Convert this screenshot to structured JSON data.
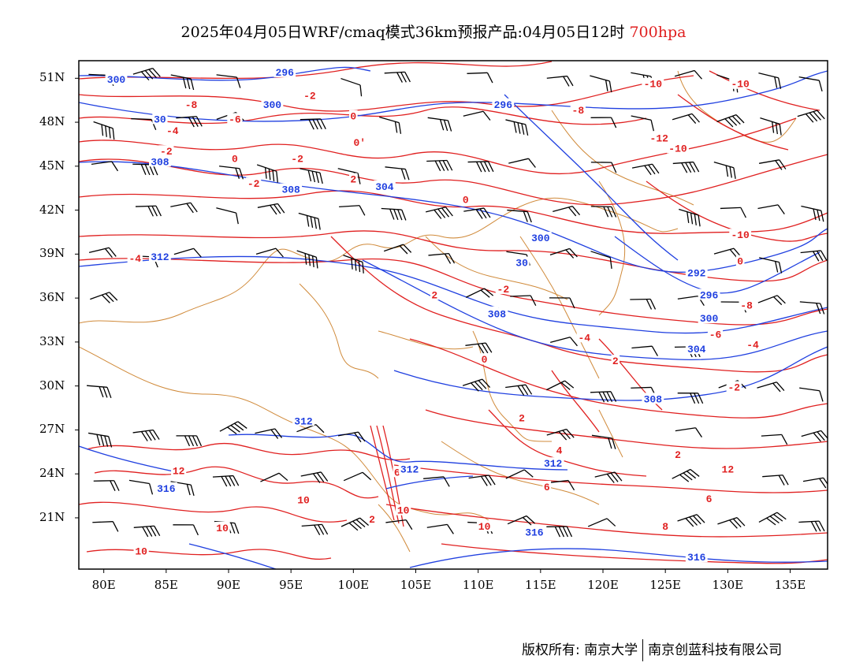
{
  "title": {
    "text": "2025年04月05日WRF/cmaq模式36km预报产品:04月05日12时",
    "level": "700hpa"
  },
  "axes": {
    "lat_labels": [
      "51N",
      "48N",
      "45N",
      "42N",
      "39N",
      "36N",
      "33N",
      "30N",
      "27N",
      "24N",
      "21N"
    ],
    "lon_labels": [
      "80E",
      "85E",
      "90E",
      "95E",
      "100E",
      "105E",
      "110E",
      "115E",
      "120E",
      "125E",
      "130E",
      "135E"
    ]
  },
  "contours": {
    "temperature_color": "#e02020",
    "height_color": "#2040e0",
    "border_color": "#d08a3a",
    "temperature_labels": [
      {
        "text": "-8",
        "lon": 87,
        "lat": 49.2
      },
      {
        "text": "-6",
        "lon": 90.5,
        "lat": 48.2
      },
      {
        "text": "-2",
        "lon": 96.5,
        "lat": 49.8
      },
      {
        "text": "0",
        "lon": 100,
        "lat": 48.4
      },
      {
        "text": "-4",
        "lon": 85.5,
        "lat": 47.4
      },
      {
        "text": "-2",
        "lon": 85,
        "lat": 46
      },
      {
        "text": "0",
        "lon": 90.5,
        "lat": 45.5
      },
      {
        "text": "-2",
        "lon": 95.5,
        "lat": 45.5
      },
      {
        "text": "-2",
        "lon": 92,
        "lat": 43.8
      },
      {
        "text": "0'",
        "lon": 100.5,
        "lat": 46.6
      },
      {
        "text": "2",
        "lon": 100,
        "lat": 44.1
      },
      {
        "text": "0",
        "lon": 109,
        "lat": 42.7
      },
      {
        "text": "-8",
        "lon": 118,
        "lat": 48.8
      },
      {
        "text": "-10",
        "lon": 124,
        "lat": 50.6
      },
      {
        "text": "-12",
        "lon": 124.5,
        "lat": 46.9
      },
      {
        "text": "-10",
        "lon": 126,
        "lat": 46.2
      },
      {
        "text": "-10",
        "lon": 131,
        "lat": 50.6
      },
      {
        "text": "-10",
        "lon": 131,
        "lat": 40.3
      },
      {
        "text": "-4",
        "lon": 82.5,
        "lat": 38.7
      },
      {
        "text": "2",
        "lon": 106.5,
        "lat": 36.2
      },
      {
        "text": "-2",
        "lon": 112,
        "lat": 36.6
      },
      {
        "text": "-0",
        "lon": 111,
        "lat": 35
      },
      {
        "text": "0",
        "lon": 131,
        "lat": 38.5
      },
      {
        "text": "-8",
        "lon": 131.5,
        "lat": 35.5
      },
      {
        "text": "-6",
        "lon": 129,
        "lat": 33.5
      },
      {
        "text": "-4",
        "lon": 118.5,
        "lat": 33.3
      },
      {
        "text": "-4",
        "lon": 132,
        "lat": 32.8
      },
      {
        "text": "0",
        "lon": 110.5,
        "lat": 31.8
      },
      {
        "text": "2",
        "lon": 121,
        "lat": 31.7
      },
      {
        "text": "-2",
        "lon": 130.5,
        "lat": 29.9
      },
      {
        "text": "2",
        "lon": 113.5,
        "lat": 27.8
      },
      {
        "text": "4",
        "lon": 116.5,
        "lat": 25.6
      },
      {
        "text": "2",
        "lon": 126,
        "lat": 25.3
      },
      {
        "text": "6",
        "lon": 103.5,
        "lat": 24.1
      },
      {
        "text": "12",
        "lon": 86,
        "lat": 24.2
      },
      {
        "text": "12",
        "lon": 130,
        "lat": 24.3
      },
      {
        "text": "6",
        "lon": 115.5,
        "lat": 23.1
      },
      {
        "text": "6",
        "lon": 128.5,
        "lat": 22.3
      },
      {
        "text": "10",
        "lon": 96,
        "lat": 22.2
      },
      {
        "text": "10",
        "lon": 104,
        "lat": 21.5
      },
      {
        "text": "2",
        "lon": 101.5,
        "lat": 20.9
      },
      {
        "text": "8",
        "lon": 125,
        "lat": 20.4
      },
      {
        "text": "10",
        "lon": 89.5,
        "lat": 20.3
      },
      {
        "text": "10",
        "lon": 110.5,
        "lat": 20.4
      },
      {
        "text": "10",
        "lon": 83,
        "lat": 18.7
      }
    ],
    "height_labels": [
      {
        "text": "300",
        "lon": 81,
        "lat": 50.9
      },
      {
        "text": "296",
        "lon": 94.5,
        "lat": 51.4
      },
      {
        "text": "300",
        "lon": 93.5,
        "lat": 49.2
      },
      {
        "text": "296",
        "lon": 112,
        "lat": 49.2
      },
      {
        "text": "30",
        "lon": 84.5,
        "lat": 48.2
      },
      {
        "text": "308",
        "lon": 84.5,
        "lat": 45.3
      },
      {
        "text": "308",
        "lon": 95,
        "lat": 43.4
      },
      {
        "text": "304",
        "lon": 102.5,
        "lat": 43.6
      },
      {
        "text": "312",
        "lon": 84.5,
        "lat": 38.8
      },
      {
        "text": "300",
        "lon": 115,
        "lat": 40.1
      },
      {
        "text": "30",
        "lon": 113.5,
        "lat": 38.4
      },
      {
        "text": "292",
        "lon": 127.5,
        "lat": 37.7
      },
      {
        "text": "296",
        "lon": 128.5,
        "lat": 36.2
      },
      {
        "text": "300",
        "lon": 128.5,
        "lat": 34.6
      },
      {
        "text": "308",
        "lon": 111.5,
        "lat": 34.9
      },
      {
        "text": "304",
        "lon": 127.5,
        "lat": 32.5
      },
      {
        "text": "308",
        "lon": 124,
        "lat": 29.1
      },
      {
        "text": "312",
        "lon": 96,
        "lat": 27.6
      },
      {
        "text": "312",
        "lon": 104.5,
        "lat": 24.3
      },
      {
        "text": "312",
        "lon": 116,
        "lat": 24.7
      },
      {
        "text": "316",
        "lon": 85,
        "lat": 23
      },
      {
        "text": "316",
        "lon": 114.5,
        "lat": 20
      },
      {
        "text": "316",
        "lon": 127.5,
        "lat": 18.3
      }
    ]
  },
  "footer": {
    "copyright": "版权所有: 南京大学",
    "company": "南京创蓝科技有限公司"
  }
}
